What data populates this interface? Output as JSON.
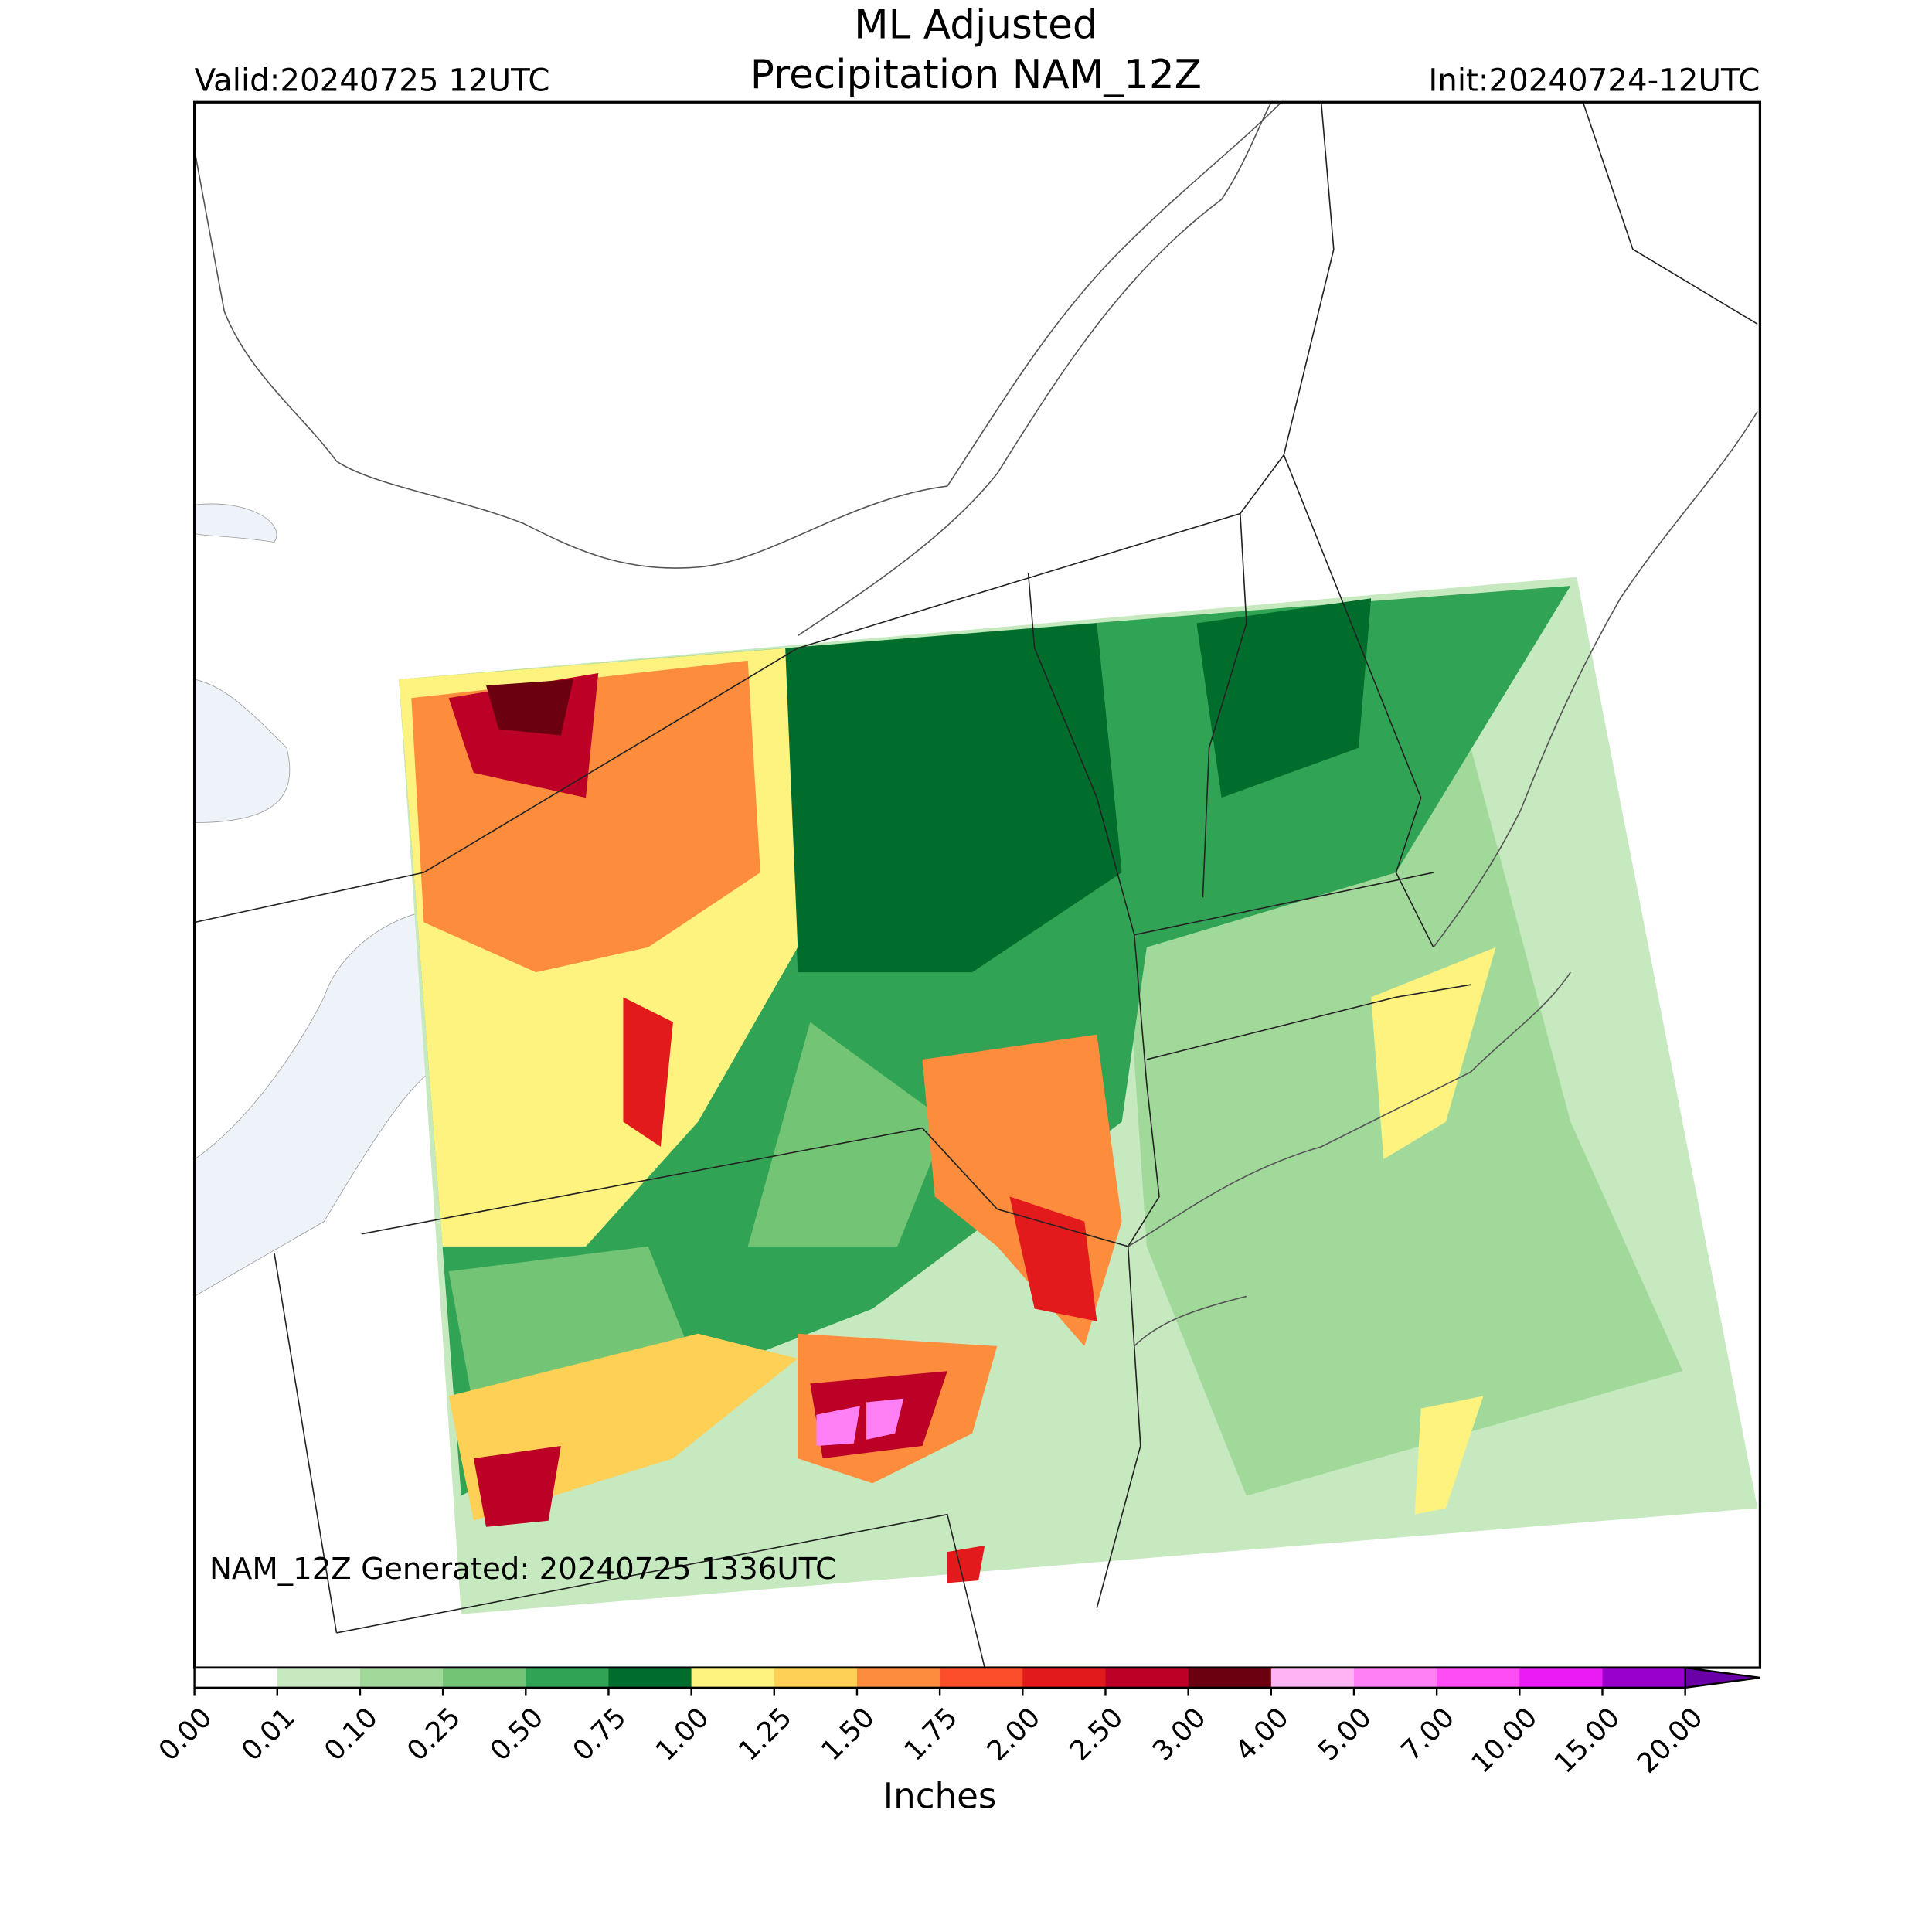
{
  "header": {
    "title_line1": "ML Adjusted",
    "title_line2": "Precipitation NAM_12Z",
    "valid": "Valid:20240725 12UTC",
    "init": "Init:20240724-12UTC"
  },
  "annotation": "NAM_12Z Generated: 20240725 1336UTC",
  "colorbar": {
    "label": "Inches",
    "extend": "max",
    "ticks": [
      {
        "value": 0,
        "label": "0.00"
      },
      {
        "value": 0.01,
        "label": "0.01"
      },
      {
        "value": 0.1,
        "label": "0.10"
      },
      {
        "value": 0.25,
        "label": "0.25"
      },
      {
        "value": 0.5,
        "label": "0.50"
      },
      {
        "value": 0.75,
        "label": "0.75"
      },
      {
        "value": 1,
        "label": "1.00"
      },
      {
        "value": 1.25,
        "label": "1.25"
      },
      {
        "value": 1.5,
        "label": "1.50"
      },
      {
        "value": 1.75,
        "label": "1.75"
      },
      {
        "value": 2,
        "label": "2.00"
      },
      {
        "value": 2.5,
        "label": "2.50"
      },
      {
        "value": 3,
        "label": "3.00"
      },
      {
        "value": 4,
        "label": "4.00"
      },
      {
        "value": 5,
        "label": "5.00"
      },
      {
        "value": 7,
        "label": "7.00"
      },
      {
        "value": 10,
        "label": "10.00"
      },
      {
        "value": 15,
        "label": "15.00"
      },
      {
        "value": 20,
        "label": "20.00"
      }
    ],
    "colors": [
      "#ffffff",
      "#c7e9c0",
      "#a1d99b",
      "#74c476",
      "#31a354",
      "#006d2c",
      "#fff380",
      "#fed055",
      "#fd8d3c",
      "#fc4e2a",
      "#e31a1c",
      "#bd0026",
      "#6b0010",
      "#ffb3f5",
      "#ff80f5",
      "#ff4df5",
      "#ea1cf5",
      "#9900cc",
      "#6a00a8"
    ]
  }
}
